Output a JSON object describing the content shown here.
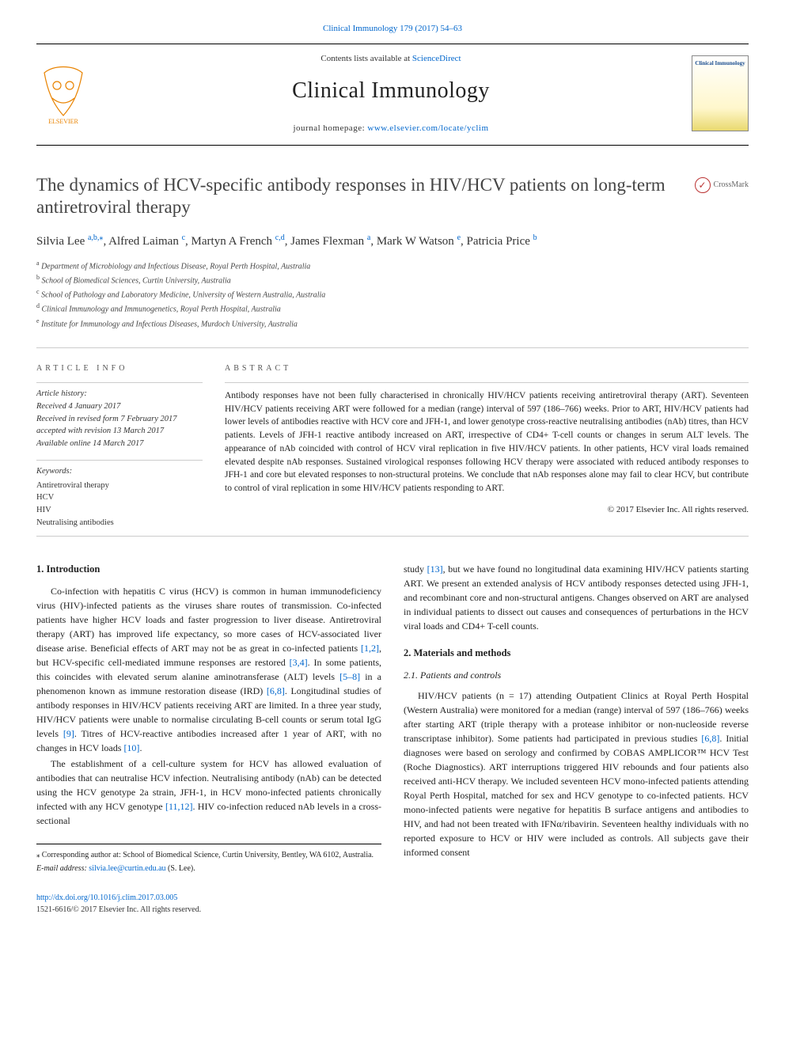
{
  "page_citation_link": "Clinical Immunology 179 (2017) 54–63",
  "masthead": {
    "contents_prefix": "Contents lists available at ",
    "contents_link": "ScienceDirect",
    "journal_title": "Clinical Immunology",
    "homepage_prefix": "journal homepage: ",
    "homepage_url": "www.elsevier.com/locate/yclim",
    "cover_title": "Clinical Immunology"
  },
  "crossmark_label": "CrossMark",
  "article_title": "The dynamics of HCV-specific antibody responses in HIV/HCV patients on long-term antiretroviral therapy",
  "authors": [
    {
      "name": "Silvia Lee ",
      "aff": "a,b,",
      "corr": true
    },
    {
      "name": ", Alfred Laiman ",
      "aff": "c",
      "corr": false
    },
    {
      "name": ", Martyn A French ",
      "aff": "c,d",
      "corr": false
    },
    {
      "name": ", James Flexman ",
      "aff": "a",
      "corr": false
    },
    {
      "name": ", Mark W Watson ",
      "aff": "e",
      "corr": false
    },
    {
      "name": ", Patricia Price ",
      "aff": "b",
      "corr": false
    }
  ],
  "affiliations": {
    "a": "Department of Microbiology and Infectious Disease, Royal Perth Hospital, Australia",
    "b": "School of Biomedical Sciences, Curtin University, Australia",
    "c": "School of Pathology and Laboratory Medicine, University of Western Australia, Australia",
    "d": "Clinical Immunology and Immunogenetics, Royal Perth Hospital, Australia",
    "e": "Institute for Immunology and Infectious Diseases, Murdoch University, Australia"
  },
  "info_heading": "ARTICLE INFO",
  "abstract_heading": "ABSTRACT",
  "history": {
    "label": "Article history:",
    "received": "Received 4 January 2017",
    "revised": "Received in revised form 7 February 2017",
    "accepted": "accepted with revision 13 March 2017",
    "online": "Available online 14 March 2017"
  },
  "keywords": {
    "label": "Keywords:",
    "items": [
      "Antiretroviral therapy",
      "HCV",
      "HIV",
      "Neutralising antibodies"
    ]
  },
  "abstract_text": "Antibody responses have not been fully characterised in chronically HIV/HCV patients receiving antiretroviral therapy (ART). Seventeen HIV/HCV patients receiving ART were followed for a median (range) interval of 597 (186–766) weeks. Prior to ART, HIV/HCV patients had lower levels of antibodies reactive with HCV core and JFH-1, and lower genotype cross-reactive neutralising antibodies (nAb) titres, than HCV patients. Levels of JFH-1 reactive antibody increased on ART, irrespective of CD4+ T-cell counts or changes in serum ALT levels. The appearance of nAb coincided with control of HCV viral replication in five HIV/HCV patients. In other patients, HCV viral loads remained elevated despite nAb responses. Sustained virological responses following HCV therapy were associated with reduced antibody responses to JFH-1 and core but elevated responses to non-structural proteins. We conclude that nAb responses alone may fail to clear HCV, but contribute to control of viral replication in some HIV/HCV patients responding to ART.",
  "copyright": "© 2017 Elsevier Inc. All rights reserved.",
  "sections": {
    "intro_heading": "1. Introduction",
    "intro_p1_a": "Co-infection with hepatitis C virus (HCV) is common in human immunodeficiency virus (HIV)-infected patients as the viruses share routes of transmission. Co-infected patients have higher HCV loads and faster progression to liver disease. Antiretroviral therapy (ART) has improved life expectancy, so more cases of HCV-associated liver disease arise. Beneficial effects of ART may not be as great in co-infected patients ",
    "intro_p1_ref1": "[1,2]",
    "intro_p1_b": ", but HCV-specific cell-mediated immune responses are restored ",
    "intro_p1_ref2": "[3,4]",
    "intro_p1_c": ". In some patients, this coincides with elevated serum alanine aminotransferase (ALT) levels ",
    "intro_p1_ref3": "[5–8]",
    "intro_p1_d": " in a phenomenon known as immune restoration disease (IRD) ",
    "intro_p1_ref4": "[6,8]",
    "intro_p1_e": ". Longitudinal studies of antibody responses in HIV/HCV patients receiving ART are limited. In a three year study, HIV/HCV patients were unable to normalise circulating B-cell counts or serum total IgG levels ",
    "intro_p1_ref5": "[9]",
    "intro_p1_f": ". Titres of HCV-reactive antibodies increased after 1 year of ART, with no changes in HCV loads ",
    "intro_p1_ref6": "[10]",
    "intro_p1_g": ".",
    "intro_p2_a": "The establishment of a cell-culture system for HCV has allowed evaluation of antibodies that can neutralise HCV infection. Neutralising antibody (nAb) can be detected using the HCV genotype 2a strain, JFH-1, in HCV mono-infected patients chronically infected with any HCV genotype ",
    "intro_p2_ref1": "[11,12]",
    "intro_p2_b": ". HIV co-infection reduced nAb levels in a cross-sectional",
    "col2_a": "study ",
    "col2_ref1": "[13]",
    "col2_b": ", but we have found no longitudinal data examining HIV/HCV patients starting ART. We present an extended analysis of HCV antibody responses detected using JFH-1, and recombinant core and non-structural antigens. Changes observed on ART are analysed in individual patients to dissect out causes and consequences of perturbations in the HCV viral loads and CD4+ T-cell counts.",
    "methods_heading": "2. Materials and methods",
    "sub21": "2.1. Patients and controls",
    "methods_p1_a": "HIV/HCV patients (n = 17) attending Outpatient Clinics at Royal Perth Hospital (Western Australia) were monitored for a median (range) interval of 597 (186–766) weeks after starting ART (triple therapy with a protease inhibitor or non-nucleoside reverse transcriptase inhibitor). Some patients had participated in previous studies ",
    "methods_p1_ref1": "[6,8]",
    "methods_p1_b": ". Initial diagnoses were based on serology and confirmed by COBAS AMPLICOR™ HCV Test (Roche Diagnostics). ART interruptions triggered HIV rebounds and four patients also received anti-HCV therapy. We included seventeen HCV mono-infected patients attending Royal Perth Hospital, matched for sex and HCV genotype to co-infected patients. HCV mono-infected patients were negative for hepatitis B surface antigens and antibodies to HIV, and had not been treated with IFNα/ribavirin. Seventeen healthy individuals with no reported exposure to HCV or HIV were included as controls. All subjects gave their informed consent"
  },
  "footnotes": {
    "corr": "Corresponding author at: School of Biomedical Science, Curtin University, Bentley, WA 6102, Australia.",
    "email_label": "E-mail address: ",
    "email": "silvia.lee@curtin.edu.au",
    "email_who": " (S. Lee)."
  },
  "footer": {
    "doi": "http://dx.doi.org/10.1016/j.clim.2017.03.005",
    "issn": "1521-6616/© 2017 Elsevier Inc. All rights reserved."
  },
  "colors": {
    "link": "#0066cc",
    "elsevier_orange": "#e98300",
    "text": "#222222",
    "muted": "#555555"
  }
}
